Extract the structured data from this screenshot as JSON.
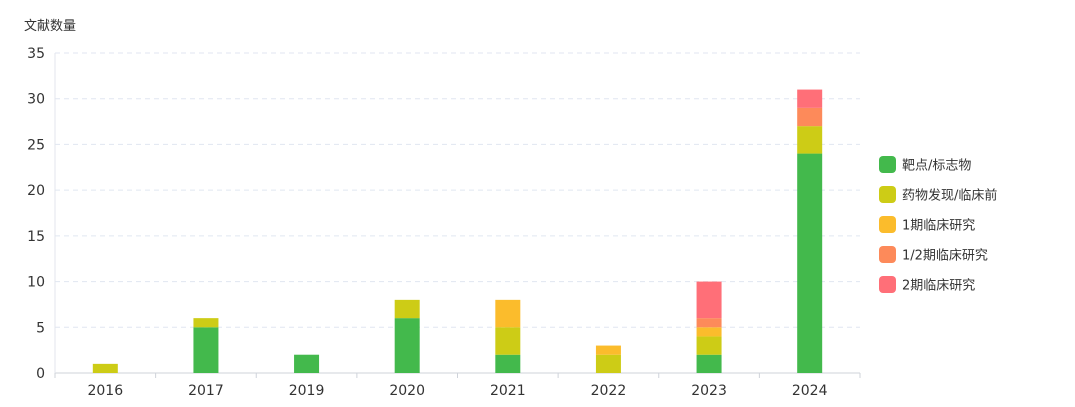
{
  "chart_data": {
    "type": "bar",
    "stacked": true,
    "ylabel": "文献数量",
    "xlabel": "",
    "title": "",
    "categories": [
      "2016",
      "2017",
      "2019",
      "2020",
      "2021",
      "2022",
      "2023",
      "2024"
    ],
    "ylim": [
      0,
      35
    ],
    "yticks": [
      0,
      5,
      10,
      15,
      20,
      25,
      30,
      35
    ],
    "grid": true,
    "legend_position": "right",
    "series": [
      {
        "name": "靶点/标志物",
        "color": "#43b94c",
        "values": [
          0,
          5,
          2,
          6,
          2,
          0,
          2,
          24
        ]
      },
      {
        "name": "药物发现/临床前",
        "color": "#cdcc16",
        "values": [
          1,
          1,
          0,
          2,
          3,
          2,
          2,
          3
        ]
      },
      {
        "name": "1期临床研究",
        "color": "#fbbc2c",
        "values": [
          0,
          0,
          0,
          0,
          3,
          1,
          1,
          0
        ]
      },
      {
        "name": "1/2期临床研究",
        "color": "#fd8a5a",
        "values": [
          0,
          0,
          0,
          0,
          0,
          0,
          1,
          2
        ]
      },
      {
        "name": "2期临床研究",
        "color": "#ff6f78",
        "values": [
          0,
          0,
          0,
          0,
          0,
          0,
          4,
          2
        ]
      }
    ]
  }
}
